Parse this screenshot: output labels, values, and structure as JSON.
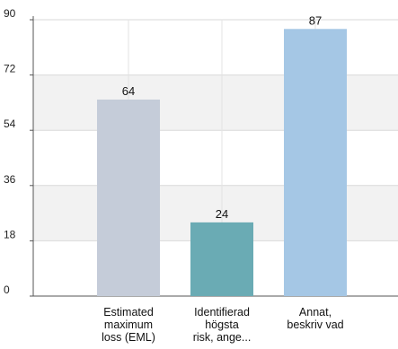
{
  "chart_data": {
    "type": "bar",
    "categories": [
      [
        "Estimated",
        "maximum",
        "loss (EML)"
      ],
      [
        "Identifierad",
        "högsta",
        "risk, ange..."
      ],
      [
        "Annat,",
        "beskriv vad"
      ]
    ],
    "values": [
      64,
      24,
      87
    ],
    "data_labels": [
      "64",
      "24",
      "87"
    ],
    "bar_colors": [
      "#c5ccd9",
      "#6aabb4",
      "#a5c7e5"
    ],
    "yticks": [
      0,
      18,
      36,
      54,
      72,
      90
    ],
    "ylim": [
      0,
      90
    ],
    "grid": true,
    "title": "",
    "xlabel": "",
    "ylabel": ""
  }
}
